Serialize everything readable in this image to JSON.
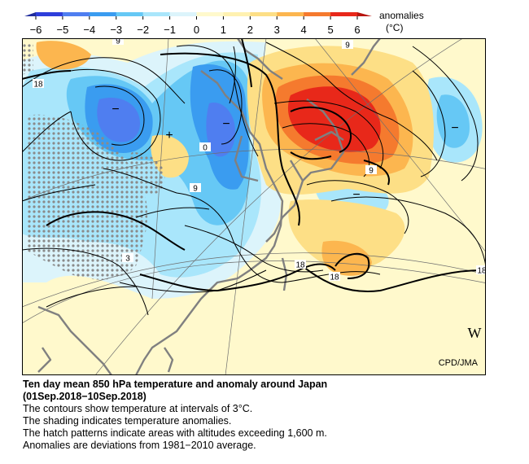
{
  "legend": {
    "title": "anomalies",
    "unit": "(°C)",
    "ticks": [
      "−6",
      "−5",
      "−4",
      "−3",
      "−2",
      "−1",
      "0",
      "1",
      "2",
      "3",
      "4",
      "5",
      "6"
    ],
    "colors": [
      "#2e3edb",
      "#4f7ef0",
      "#3a9cf0",
      "#66c8f5",
      "#a9e6fb",
      "#dcf4fb",
      "#fff9cc",
      "#fff1b0",
      "#fddf86",
      "#fcb64f",
      "#f57a2e",
      "#e8281a"
    ]
  },
  "map": {
    "contour_labels": [
      "9",
      "18",
      "0",
      "9",
      "3",
      "18",
      "18",
      "9",
      "18",
      "9"
    ],
    "center_symbols": [
      "−",
      "−",
      "+",
      "−",
      "−"
    ],
    "corner_mark": "W",
    "credit": "CPD/JMA"
  },
  "caption": {
    "title": "Ten day mean 850 hPa temperature and anomaly around Japan",
    "period": "(01Sep.2018−10Sep.2018)",
    "lines": [
      "The contours show temperature at intervals of 3°C.",
      "The shading indicates temperature anomalies.",
      "The hatch patterns indicate areas with altitudes exceeding 1,600 m.",
      "Anomalies are deviations from 1981−2010 average."
    ]
  }
}
